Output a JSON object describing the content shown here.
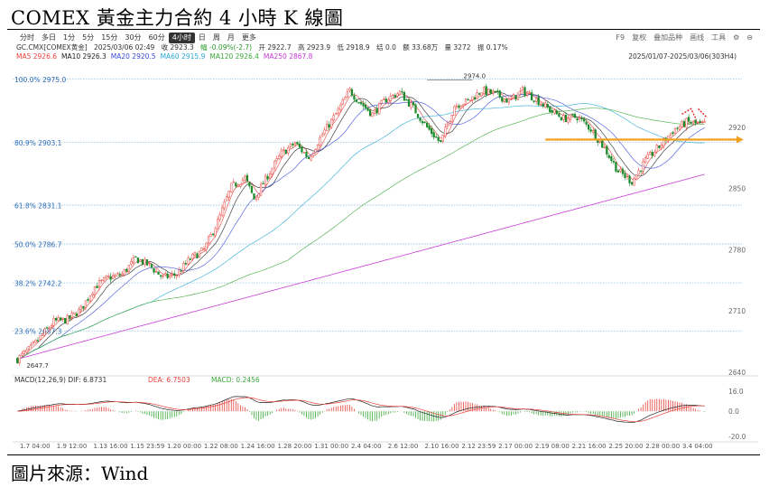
{
  "title": "COMEX 黃金主力合約 4 小時 K 線圖",
  "footer": "圖片來源：Wind",
  "toolbar": {
    "left": [
      "分时",
      "多日",
      "1分",
      "5分",
      "15分",
      "30分",
      "60分",
      "4小时",
      "日",
      "周",
      "月",
      "更多"
    ],
    "active": "4小时",
    "right": [
      "F9",
      "复权",
      "叠加品种",
      "画线",
      "工具",
      "⚙",
      "⊖"
    ]
  },
  "info": {
    "symbol": "GC.CMX[COMEX黄金]",
    "datetime": "2025/03/06 02:49",
    "close": "收 2923.3",
    "change": "幅 -0.09%(-2.7)",
    "open": "开 2922.7",
    "high": "高 2923.9",
    "low": "低 2918.9",
    "settle": "结 0.0",
    "amount": "额 33.68万",
    "volume": "量 3272",
    "amplitude": "振 0.17%"
  },
  "ma_legend": [
    {
      "label": "MA5 2926.6",
      "color": "#e8403a"
    },
    {
      "label": "MA10 2926.3",
      "color": "#222222"
    },
    {
      "label": "MA20 2920.5",
      "color": "#3a4bd8"
    },
    {
      "label": "MA60 2915.9",
      "color": "#2aa8d8"
    },
    {
      "label": "MA120 2926.4",
      "color": "#3aa83a"
    },
    {
      "label": "MA250 2867.8",
      "color": "#c73ad8"
    }
  ],
  "date_range": "2025/01/07-2025/03/06(303H4)",
  "chart_data": {
    "type": "candlestick",
    "ylim": [
      2640,
      2985
    ],
    "y_ticks": [
      2640,
      2710,
      2780,
      2850,
      2920
    ],
    "y_tick_labels": [
      "2640",
      "2710",
      "2780",
      "2850",
      "2920"
    ],
    "x_tick_labels": [
      "1.7 04:00",
      "1.9 12:00",
      "1.13 16:00",
      "1.15 23:59",
      "1.20 00:00",
      "1.22 08:00",
      "1.24 16:00",
      "1.28 20:00",
      "1.31 00:00",
      "2.4 04:00",
      "2.6 12:00",
      "2.10 16:00",
      "2.12 23:59",
      "2.17 00:00",
      "2.19 08:00",
      "2.21 16:00",
      "2.25 20:00",
      "2.28 00:00",
      "3.4 04:00"
    ],
    "fib_levels": [
      {
        "label": "100.0%",
        "value": 2975.0,
        "text": "2975.0"
      },
      {
        "label": "80.9%",
        "value": 2903.1,
        "text": "2903.1"
      },
      {
        "label": "61.8%",
        "value": 2831.1,
        "text": "2831.1"
      },
      {
        "label": "50.0%",
        "value": 2786.7,
        "text": "2786.7"
      },
      {
        "label": "38.2%",
        "value": 2742.2,
        "text": "2742.2"
      },
      {
        "label": "23.6%",
        "value": 2687.3,
        "text": "2687.3"
      }
    ],
    "annotations": {
      "high_label": "2974.0",
      "low_label": "2647.7"
    },
    "trend_anchors": [
      [
        0,
        2655
      ],
      [
        6,
        2668
      ],
      [
        12,
        2686
      ],
      [
        16,
        2698
      ],
      [
        22,
        2700
      ],
      [
        28,
        2712
      ],
      [
        34,
        2738
      ],
      [
        40,
        2748
      ],
      [
        46,
        2752
      ],
      [
        52,
        2770
      ],
      [
        58,
        2762
      ],
      [
        64,
        2748
      ],
      [
        70,
        2752
      ],
      [
        76,
        2770
      ],
      [
        82,
        2780
      ],
      [
        88,
        2812
      ],
      [
        94,
        2852
      ],
      [
        100,
        2862
      ],
      [
        104,
        2838
      ],
      [
        110,
        2865
      ],
      [
        116,
        2890
      ],
      [
        122,
        2902
      ],
      [
        128,
        2885
      ],
      [
        134,
        2912
      ],
      [
        140,
        2935
      ],
      [
        146,
        2962
      ],
      [
        150,
        2950
      ],
      [
        156,
        2935
      ],
      [
        162,
        2952
      ],
      [
        168,
        2960
      ],
      [
        174,
        2942
      ],
      [
        180,
        2920
      ],
      [
        186,
        2902
      ],
      [
        192,
        2945
      ],
      [
        198,
        2950
      ],
      [
        204,
        2962
      ],
      [
        210,
        2958
      ],
      [
        216,
        2950
      ],
      [
        222,
        2962
      ],
      [
        228,
        2952
      ],
      [
        234,
        2940
      ],
      [
        240,
        2930
      ],
      [
        246,
        2932
      ],
      [
        252,
        2918
      ],
      [
        258,
        2896
      ],
      [
        264,
        2870
      ],
      [
        270,
        2858
      ],
      [
        276,
        2882
      ],
      [
        282,
        2898
      ],
      [
        288,
        2916
      ],
      [
        294,
        2926
      ],
      [
        302,
        2923
      ]
    ],
    "macd": {
      "label": "MACD(12,26,9)",
      "dif": "DIF: 6.8731",
      "dea": "DEA: 6.7503",
      "macd": "MACD: 0.2456",
      "ylim": [
        -22,
        18
      ],
      "y_ticks": [
        16.0,
        0.0,
        -20.0
      ],
      "y_tick_labels": [
        "16.0",
        "0.0",
        "-20.0"
      ]
    }
  }
}
